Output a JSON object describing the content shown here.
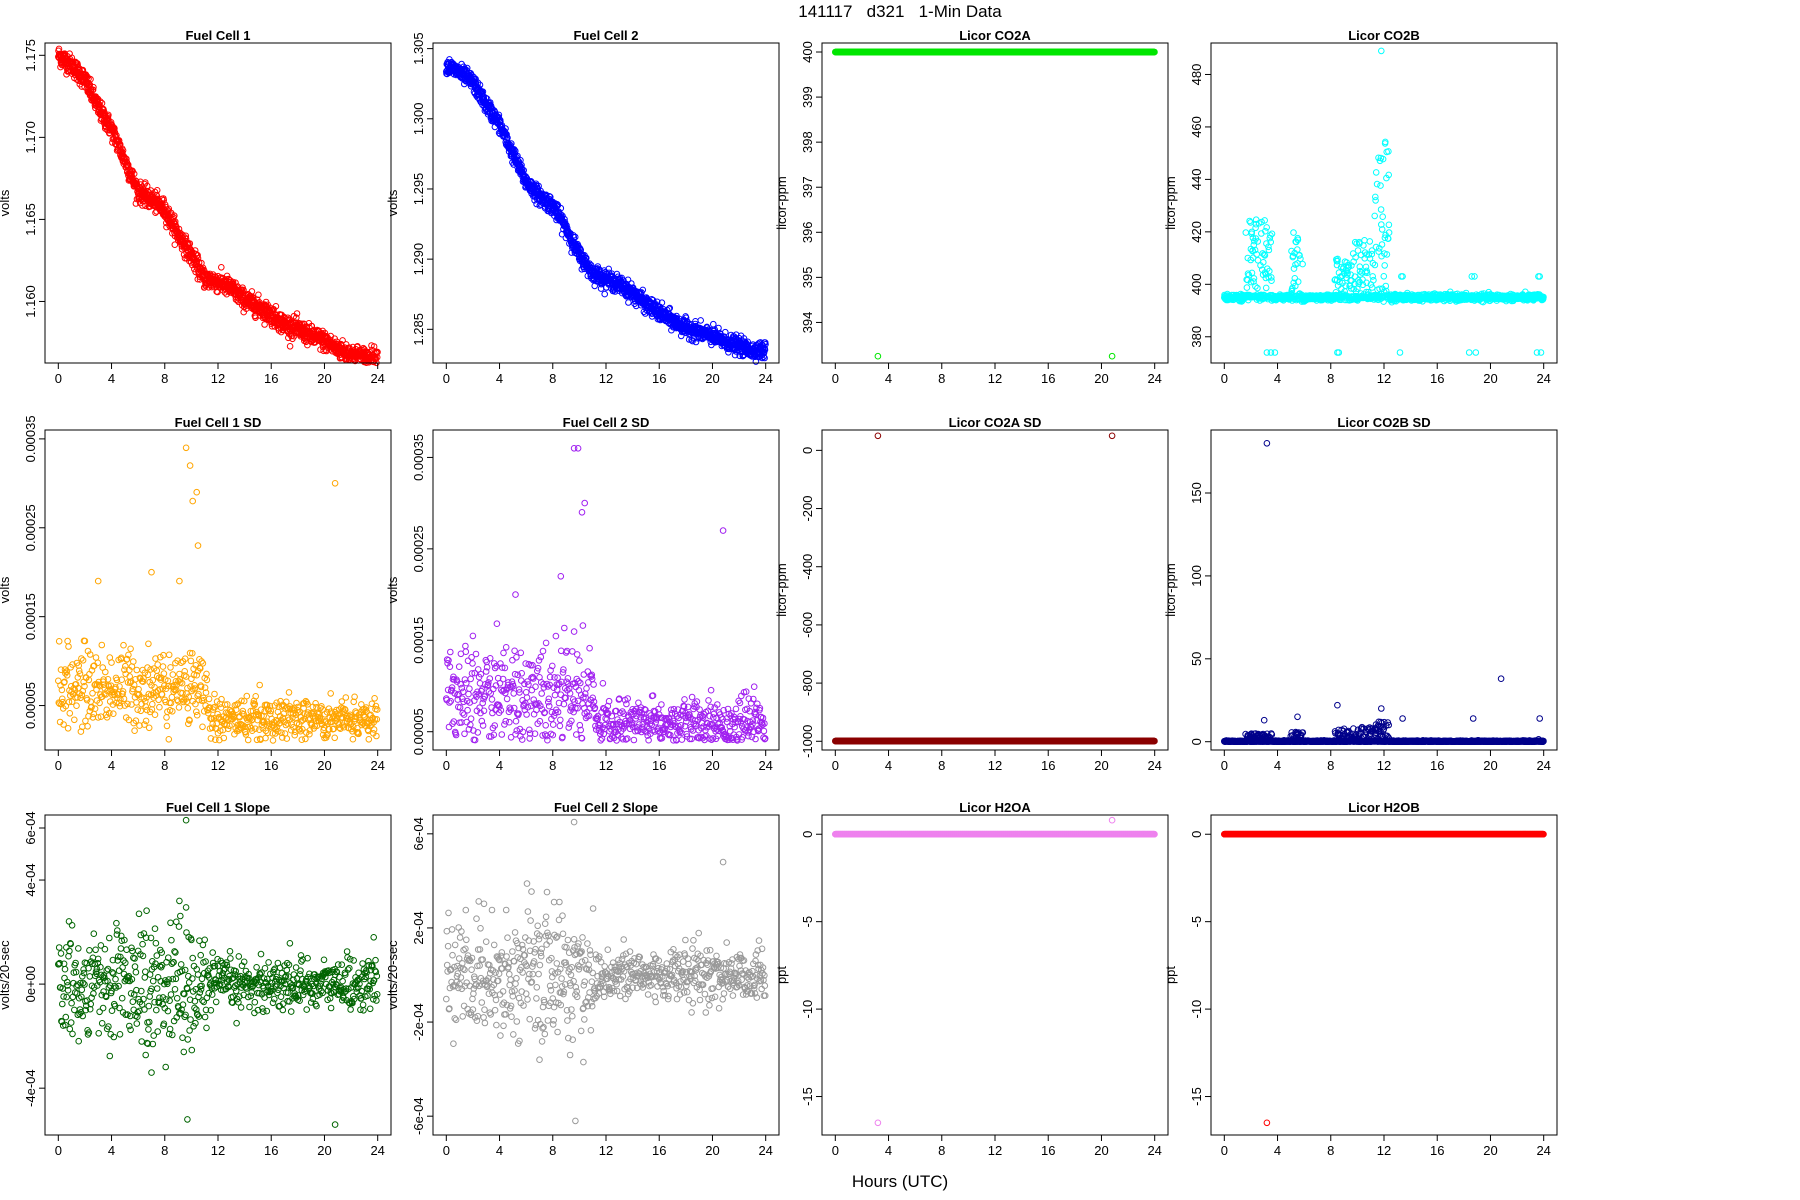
{
  "figure": {
    "title": "141117   d321   1-Min Data",
    "xlabel": "Hours (UTC)"
  },
  "chart_data": [
    {
      "id": "fc1",
      "type": "scatter",
      "title": "Fuel Cell 1",
      "ylabel": "volts",
      "color": "#ff0000",
      "xlim": [
        -1,
        25
      ],
      "ylim": [
        1.15625,
        1.17575
      ],
      "xticks": [
        0,
        4,
        8,
        12,
        16,
        20,
        24
      ],
      "yticks": [
        1.16,
        1.165,
        1.17,
        1.175
      ],
      "ytick_labels": [
        "1.160",
        "1.165",
        "1.170",
        "1.175"
      ],
      "model": "trend",
      "trend": [
        [
          0,
          1.175
        ],
        [
          1,
          1.1744
        ],
        [
          2,
          1.1735
        ],
        [
          3,
          1.1718
        ],
        [
          4,
          1.1705
        ],
        [
          5,
          1.1686
        ],
        [
          6,
          1.1667
        ],
        [
          7,
          1.1662
        ],
        [
          8,
          1.1656
        ],
        [
          9,
          1.1641
        ],
        [
          10,
          1.1628
        ],
        [
          11,
          1.1614
        ],
        [
          12,
          1.1612
        ],
        [
          13,
          1.1608
        ],
        [
          14,
          1.1601
        ],
        [
          15,
          1.1597
        ],
        [
          16,
          1.1592
        ],
        [
          17,
          1.1586
        ],
        [
          18,
          1.1583
        ],
        [
          19,
          1.1579
        ],
        [
          20,
          1.1576
        ],
        [
          21,
          1.1571
        ],
        [
          22,
          1.1568
        ],
        [
          23,
          1.1566
        ],
        [
          24,
          1.1566
        ]
      ],
      "noise": 0.0003
    },
    {
      "id": "fc2",
      "type": "scatter",
      "title": "Fuel Cell 2",
      "ylabel": "volts",
      "color": "#0000ff",
      "xlim": [
        -1,
        25
      ],
      "ylim": [
        1.2826,
        1.3054
      ],
      "xticks": [
        0,
        4,
        8,
        12,
        16,
        20,
        24
      ],
      "yticks": [
        1.285,
        1.29,
        1.295,
        1.3,
        1.305
      ],
      "ytick_labels": [
        "1.285",
        "1.290",
        "1.295",
        "1.300",
        "1.305"
      ],
      "model": "trend",
      "trend": [
        [
          0,
          1.3038
        ],
        [
          1,
          1.3033
        ],
        [
          2,
          1.3026
        ],
        [
          3,
          1.301
        ],
        [
          4,
          1.2996
        ],
        [
          5,
          1.2975
        ],
        [
          6,
          1.2955
        ],
        [
          7,
          1.2945
        ],
        [
          8,
          1.2938
        ],
        [
          9,
          1.2922
        ],
        [
          10,
          1.2903
        ],
        [
          11,
          1.289
        ],
        [
          12,
          1.2886
        ],
        [
          13,
          1.2882
        ],
        [
          14,
          1.2876
        ],
        [
          15,
          1.2868
        ],
        [
          16,
          1.2862
        ],
        [
          17,
          1.2856
        ],
        [
          18,
          1.2851
        ],
        [
          19,
          1.2848
        ],
        [
          20,
          1.2845
        ],
        [
          21,
          1.2841
        ],
        [
          22,
          1.2838
        ],
        [
          23,
          1.2835
        ],
        [
          24,
          1.2835
        ]
      ],
      "noise": 0.0003
    },
    {
      "id": "co2a",
      "type": "scatter",
      "title": "Licor CO2A",
      "ylabel": "licor-ppm",
      "color": "#00e600",
      "xlim": [
        -1,
        25
      ],
      "ylim": [
        393.1,
        400.2
      ],
      "xticks": [
        0,
        4,
        8,
        12,
        16,
        20,
        24
      ],
      "yticks": [
        394,
        395,
        396,
        397,
        398,
        399,
        400
      ],
      "ytick_labels": [
        "394",
        "395",
        "396",
        "397",
        "398",
        "399",
        "400"
      ],
      "model": "flat",
      "base": 400.0,
      "noise": 0,
      "outliers": [
        [
          3.2,
          393.25
        ],
        [
          20.8,
          393.25
        ]
      ]
    },
    {
      "id": "co2b",
      "type": "scatter",
      "title": "Licor CO2B",
      "ylabel": "licor-ppm",
      "color": "#00ffff",
      "xlim": [
        -1,
        25
      ],
      "ylim": [
        370,
        492
      ],
      "xticks": [
        0,
        4,
        8,
        12,
        16,
        20,
        24
      ],
      "yticks": [
        380,
        400,
        420,
        440,
        460,
        480
      ],
      "ytick_labels": [
        "380",
        "400",
        "420",
        "440",
        "460",
        "480"
      ],
      "model": "co2b",
      "base": 395,
      "noise": 0.6,
      "spikes": [
        [
          1.6,
          3.6,
          30
        ],
        [
          5.0,
          5.9,
          25
        ],
        [
          8.3,
          9.6,
          15
        ],
        [
          9.6,
          11.2,
          22
        ],
        [
          11.3,
          12.4,
          60
        ]
      ],
      "outliers": [
        [
          3.2,
          374
        ],
        [
          3.5,
          374
        ],
        [
          3.8,
          374
        ],
        [
          8.5,
          374
        ],
        [
          8.6,
          374
        ],
        [
          13.2,
          374
        ],
        [
          13.3,
          403
        ],
        [
          13.4,
          403
        ],
        [
          18.4,
          374
        ],
        [
          18.6,
          403
        ],
        [
          18.8,
          403
        ],
        [
          18.9,
          374
        ],
        [
          23.5,
          374
        ],
        [
          23.6,
          403
        ],
        [
          23.8,
          374
        ],
        [
          23.7,
          403
        ],
        [
          11.8,
          489
        ]
      ]
    },
    {
      "id": "fc1sd",
      "type": "scatter",
      "title": "Fuel Cell 1 SD",
      "ylabel": "volts",
      "color": "#ffa500",
      "xlim": [
        -1,
        25
      ],
      "ylim": [
        0.0,
        0.00036
      ],
      "xticks": [
        0,
        4,
        8,
        12,
        16,
        20,
        24
      ],
      "yticks": [
        5e-05,
        0.00015,
        0.00025,
        0.00035
      ],
      "ytick_labels": [
        "0.00005",
        "0.00015",
        "0.00025",
        "0.00035"
      ],
      "model": "sd",
      "early": [
        7e-05,
        2.2e-05
      ],
      "late": [
        3.5e-05,
        1.2e-05
      ],
      "split": 11.2,
      "outliers": [
        [
          9.6,
          0.00034
        ],
        [
          9.9,
          0.00032
        ],
        [
          10.1,
          0.00028
        ],
        [
          10.4,
          0.00029
        ],
        [
          10.5,
          0.00023
        ],
        [
          20.8,
          0.0003
        ],
        [
          7.0,
          0.0002
        ],
        [
          3.0,
          0.00019
        ],
        [
          9.1,
          0.00019
        ]
      ]
    },
    {
      "id": "fc2sd",
      "type": "scatter",
      "title": "Fuel Cell 2 SD",
      "ylabel": "volts",
      "color": "#a020f0",
      "xlim": [
        -1,
        25
      ],
      "ylim": [
        3e-05,
        0.00038
      ],
      "xticks": [
        0,
        4,
        8,
        12,
        16,
        20,
        24
      ],
      "yticks": [
        5e-05,
        0.00015,
        0.00025,
        0.00035
      ],
      "ytick_labels": [
        "0.00005",
        "0.00015",
        "0.00025",
        "0.00035"
      ],
      "model": "sd",
      "early": [
        9e-05,
        2.8e-05
      ],
      "late": [
        6e-05,
        1.3e-05
      ],
      "split": 11.2,
      "outliers": [
        [
          9.6,
          0.00036
        ],
        [
          9.9,
          0.00036
        ],
        [
          10.4,
          0.0003
        ],
        [
          10.2,
          0.00029
        ],
        [
          20.8,
          0.00027
        ],
        [
          8.6,
          0.00022
        ],
        [
          5.2,
          0.0002
        ]
      ]
    },
    {
      "id": "co2asd",
      "type": "scatter",
      "title": "Licor CO2A SD",
      "ylabel": "licor-ppm",
      "color": "#8b0000",
      "xlim": [
        -1,
        25
      ],
      "ylim": [
        -1030,
        70
      ],
      "xticks": [
        0,
        4,
        8,
        12,
        16,
        20,
        24
      ],
      "yticks": [
        -1000,
        -800,
        -600,
        -400,
        -200,
        0
      ],
      "ytick_labels": [
        "-1000",
        "-800",
        "-600",
        "-400",
        "-200",
        "0"
      ],
      "model": "flat",
      "base": -999,
      "noise": 0,
      "outliers": [
        [
          3.2,
          50
        ],
        [
          20.8,
          50
        ]
      ]
    },
    {
      "id": "co2bsd",
      "type": "scatter",
      "title": "Licor CO2B SD",
      "ylabel": "licor-ppm",
      "color": "#00008b",
      "xlim": [
        -1,
        25
      ],
      "ylim": [
        -5,
        188
      ],
      "xticks": [
        0,
        4,
        8,
        12,
        16,
        20,
        24
      ],
      "yticks": [
        0,
        50,
        100,
        150
      ],
      "ytick_labels": [
        "0",
        "50",
        "100",
        "150"
      ],
      "model": "co2bsd",
      "base": 0,
      "noise": 0.3,
      "spikes": [
        [
          1.6,
          3.6,
          5
        ],
        [
          5.0,
          5.9,
          6
        ],
        [
          8.3,
          9.6,
          8
        ],
        [
          9.6,
          11.2,
          9
        ],
        [
          11.3,
          12.4,
          12
        ]
      ],
      "outliers": [
        [
          3.2,
          180
        ],
        [
          20.8,
          38
        ],
        [
          8.5,
          22
        ],
        [
          11.8,
          20
        ],
        [
          23.7,
          14
        ],
        [
          13.4,
          14
        ],
        [
          18.7,
          14
        ],
        [
          5.5,
          15
        ],
        [
          3.0,
          13
        ]
      ]
    },
    {
      "id": "fc1slope",
      "type": "scatter",
      "title": "Fuel Cell 1 Slope",
      "ylabel": "volts/20-sec",
      "color": "#006400",
      "xlim": [
        -1,
        25
      ],
      "ylim": [
        -0.00058,
        0.00065
      ],
      "xticks": [
        0,
        4,
        8,
        12,
        16,
        20,
        24
      ],
      "yticks": [
        -0.0004,
        0,
        0.0004,
        0.0006
      ],
      "ytick_labels": [
        "-4e-04",
        "0e+00",
        "4e-04",
        "6e-04"
      ],
      "model": "slope",
      "early": 9.5e-05,
      "late": 5e-05,
      "split": 11.2,
      "outliers": [
        [
          9.6,
          0.00063
        ],
        [
          9.7,
          -0.00052
        ],
        [
          20.8,
          -0.00054
        ],
        [
          7.0,
          -0.00034
        ],
        [
          9.1,
          0.00032
        ],
        [
          23.7,
          0.00018
        ]
      ]
    },
    {
      "id": "fc2slope",
      "type": "scatter",
      "title": "Fuel Cell 2 Slope",
      "ylabel": "volts/20-sec",
      "color": "#999999",
      "xlim": [
        -1,
        25
      ],
      "ylim": [
        -0.00068,
        0.00068
      ],
      "xticks": [
        0,
        4,
        8,
        12,
        16,
        20,
        24
      ],
      "yticks": [
        -0.0006,
        -0.0002,
        0.0002,
        0.0006
      ],
      "ytick_labels": [
        "-6e-04",
        "-2e-04",
        "2e-04",
        "6e-04"
      ],
      "model": "slope",
      "early": 0.00011,
      "late": 6e-05,
      "split": 11.2,
      "outliers": [
        [
          9.6,
          0.00065
        ],
        [
          9.7,
          -0.00062
        ],
        [
          20.8,
          0.00048
        ],
        [
          7.0,
          -0.00036
        ],
        [
          9.3,
          -0.00034
        ],
        [
          10.3,
          -0.00037
        ],
        [
          8.1,
          0.00031
        ]
      ]
    },
    {
      "id": "h2oa",
      "type": "scatter",
      "title": "Licor H2OA",
      "ylabel": "ppt",
      "color": "#ee82ee",
      "xlim": [
        -1,
        25
      ],
      "ylim": [
        -17.2,
        1.1
      ],
      "xticks": [
        0,
        4,
        8,
        12,
        16,
        20,
        24
      ],
      "yticks": [
        -15,
        -10,
        -5,
        0
      ],
      "ytick_labels": [
        "-15",
        "-10",
        "-5",
        "0"
      ],
      "model": "flat",
      "base": 0,
      "noise": 0,
      "outliers": [
        [
          3.2,
          -16.5
        ],
        [
          20.8,
          0.8
        ]
      ]
    },
    {
      "id": "h2ob",
      "type": "scatter",
      "title": "Licor H2OB",
      "ylabel": "ppt",
      "color": "#ff0000",
      "xlim": [
        -1,
        25
      ],
      "ylim": [
        -17.2,
        1.1
      ],
      "xticks": [
        0,
        4,
        8,
        12,
        16,
        20,
        24
      ],
      "yticks": [
        -15,
        -10,
        -5,
        0
      ],
      "ytick_labels": [
        "-15",
        "-10",
        "-5",
        "0"
      ],
      "model": "flat",
      "base": 0,
      "noise": 0,
      "outliers": [
        [
          3.2,
          -16.5
        ]
      ]
    }
  ]
}
